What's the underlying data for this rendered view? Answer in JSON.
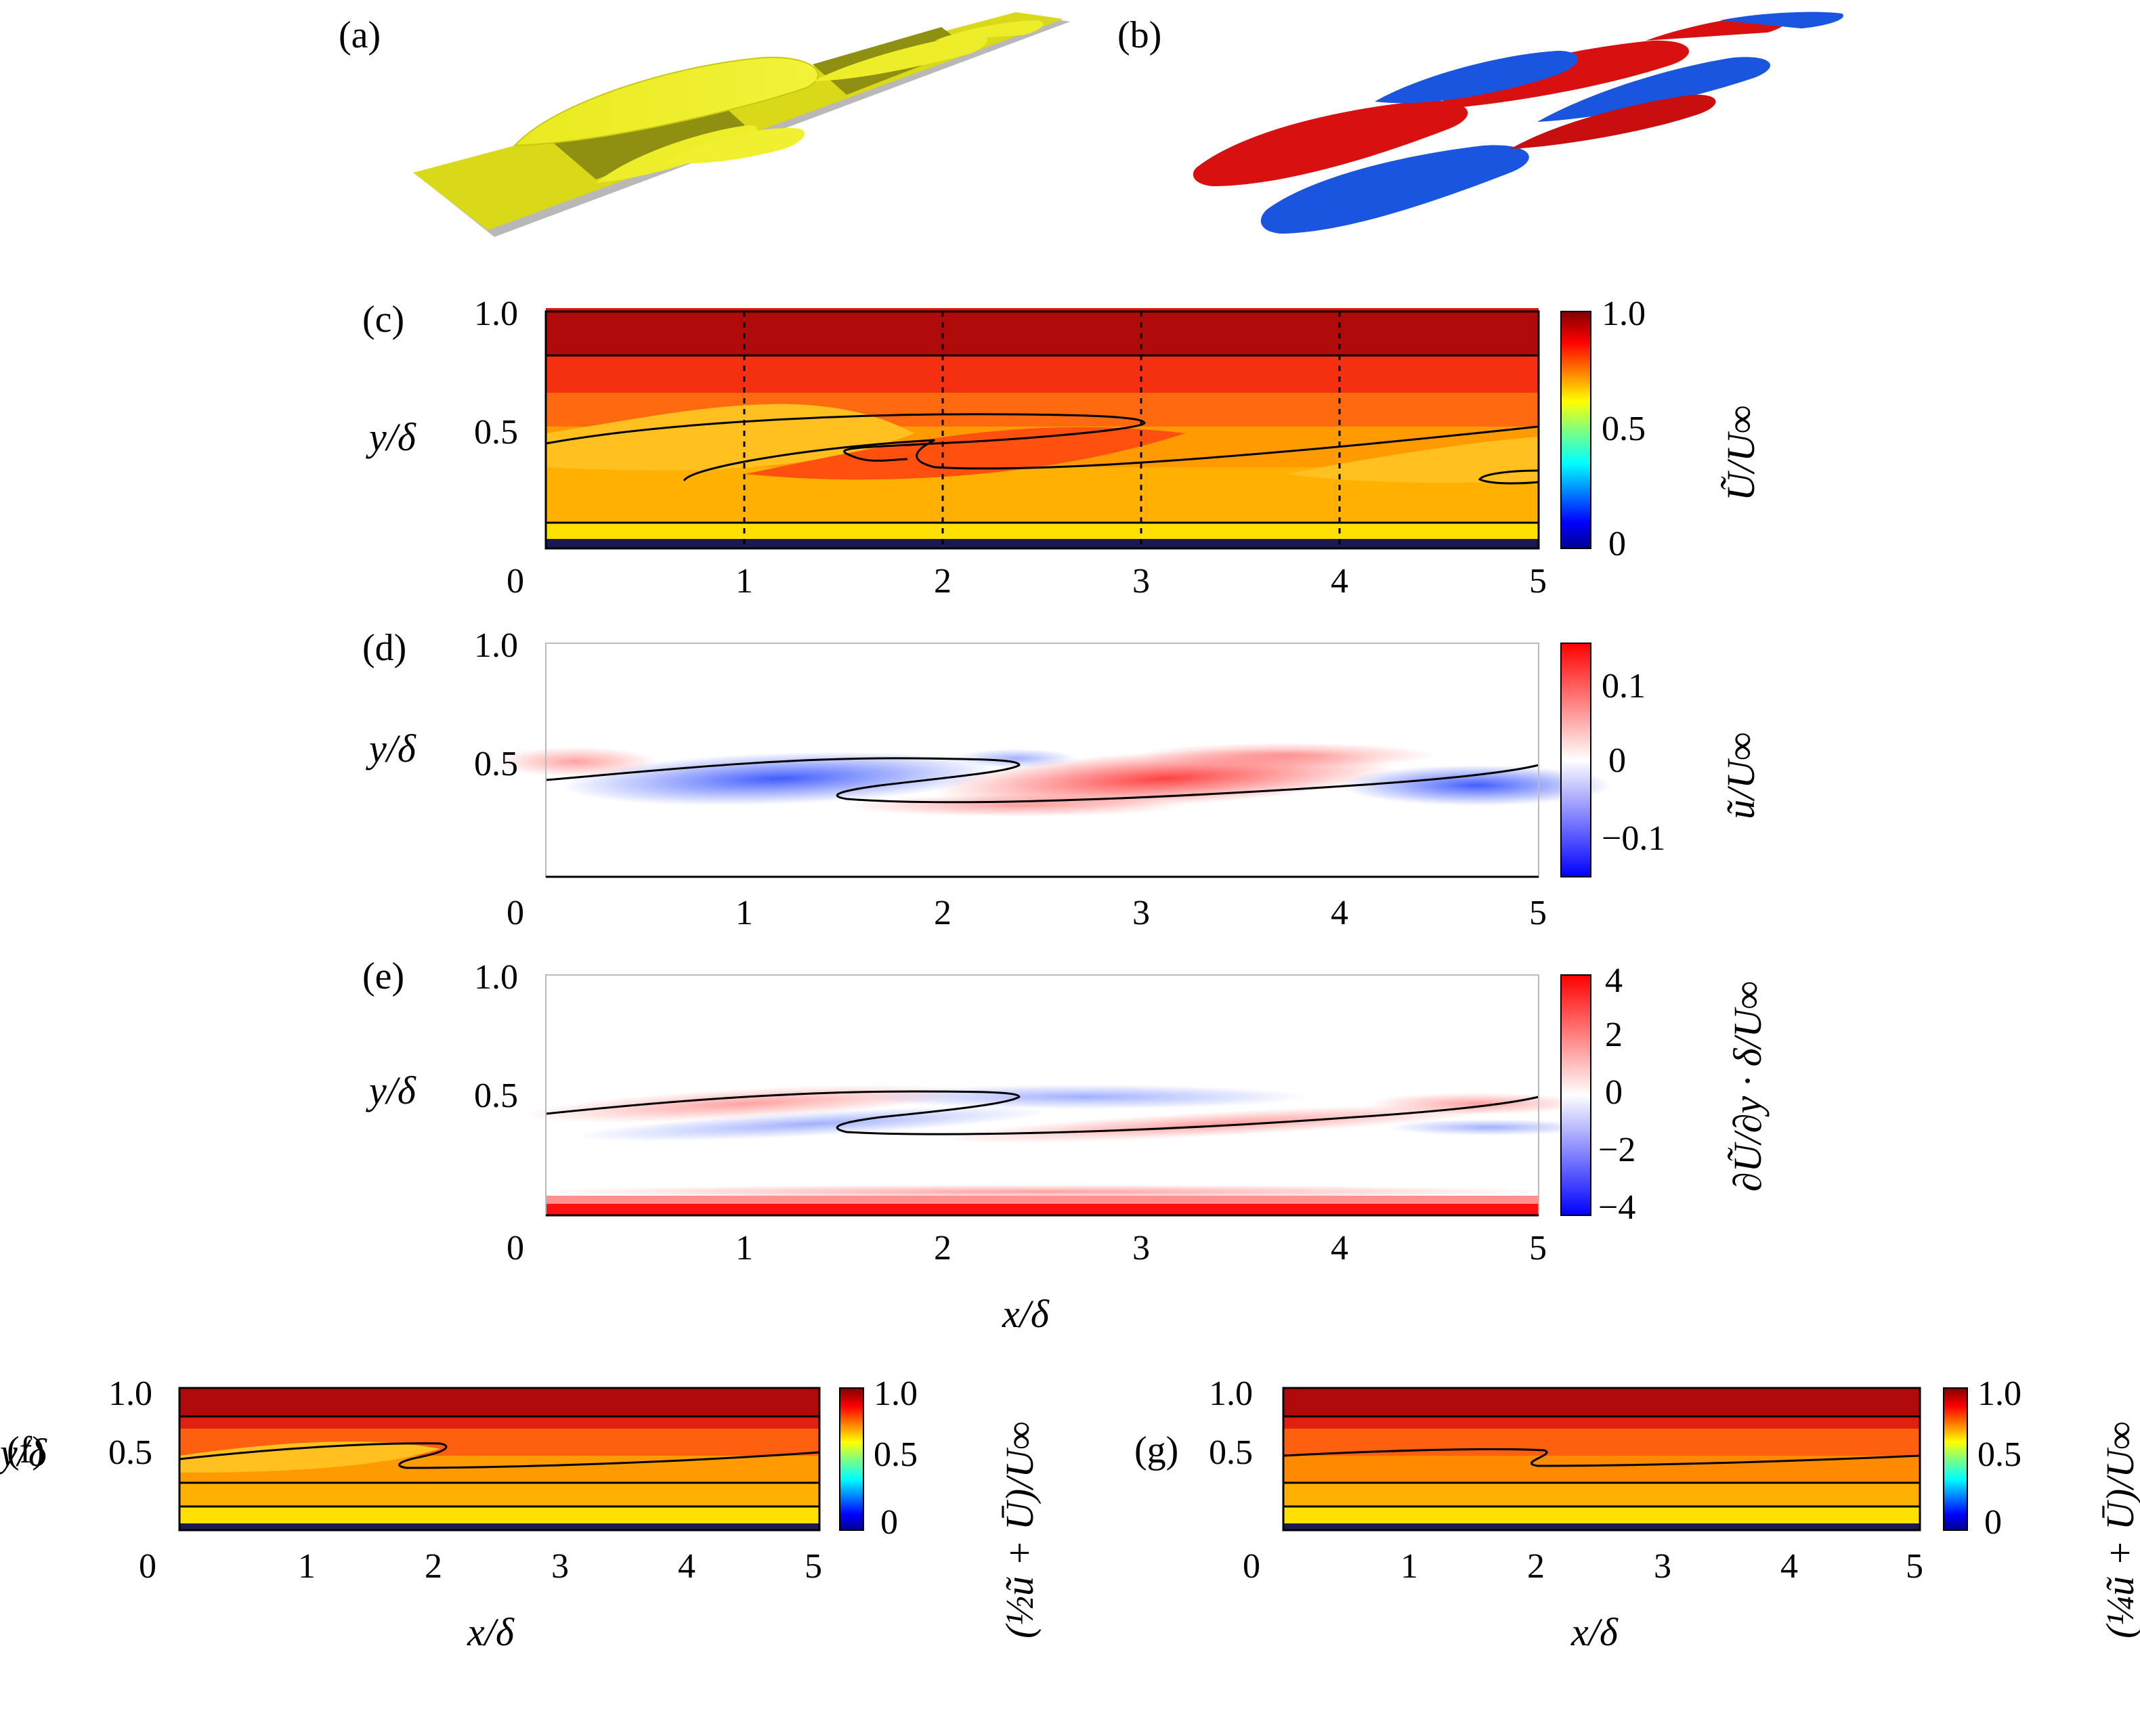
{
  "colors": {
    "yellow": "#e6e61e",
    "yellow_dark": "#8a8a10",
    "red": "#d01010",
    "blue": "#1a55e0",
    "contour": "#000000"
  },
  "chart_data": [
    {
      "id": "a",
      "type": "other",
      "label": "(a)",
      "description_kind": "3d-isosurface-yellow"
    },
    {
      "id": "b",
      "type": "other",
      "label": "(b)",
      "description_kind": "3d-isosurface-red-blue"
    },
    {
      "id": "c",
      "type": "heatmap",
      "label": "(c)",
      "ylabel": "y/δ",
      "xlabel": "",
      "xlim": [
        0,
        5
      ],
      "ylim": [
        0,
        1.0
      ],
      "xticks": [
        "0",
        "1",
        "2",
        "3",
        "4",
        "5"
      ],
      "yticks": [
        "1.0",
        "0.5"
      ],
      "colorbar": {
        "label": "Ũ/U∞",
        "ticks": [
          "1.0",
          "0.5",
          "0"
        ],
        "range": [
          0,
          1.0
        ],
        "colormap": "jet"
      },
      "dashed_x": [
        0,
        1,
        2,
        3,
        4
      ],
      "bands": [
        {
          "y0": 0.93,
          "y1": 1.0,
          "value": 1.0
        },
        {
          "y0": 0.81,
          "y1": 0.93,
          "value": 0.95
        },
        {
          "y0": 0.62,
          "y1": 0.81,
          "value": 0.9
        },
        {
          "y0": 0.48,
          "y1": 0.62,
          "value": 0.85
        },
        {
          "y0": 0.32,
          "y1": 0.48,
          "value": 0.72
        },
        {
          "y0": 0.12,
          "y1": 0.32,
          "value": 0.66
        },
        {
          "y0": 0.05,
          "y1": 0.12,
          "value": 0.55
        },
        {
          "y0": 0.0,
          "y1": 0.05,
          "value": 0.0
        }
      ]
    },
    {
      "id": "d",
      "type": "heatmap",
      "label": "(d)",
      "ylabel": "y/δ",
      "xlabel": "",
      "xlim": [
        0,
        5
      ],
      "ylim": [
        0,
        1.0
      ],
      "xticks": [
        "0",
        "1",
        "2",
        "3",
        "4",
        "5"
      ],
      "yticks": [
        "1.0",
        "0.5"
      ],
      "colorbar": {
        "label": "ũ/U∞",
        "ticks": [
          "0.1",
          "0",
          "−0.1"
        ],
        "range": [
          -0.15,
          0.15
        ],
        "colormap": "bwr"
      }
    },
    {
      "id": "e",
      "type": "heatmap",
      "label": "(e)",
      "ylabel": "y/δ",
      "xlabel": "x/δ",
      "xlim": [
        0,
        5
      ],
      "ylim": [
        0,
        1.0
      ],
      "xticks": [
        "0",
        "1",
        "2",
        "3",
        "4",
        "5"
      ],
      "yticks": [
        "1.0",
        "0.5"
      ],
      "colorbar": {
        "label": "∂Ũ/∂y · δ/U∞",
        "ticks": [
          "4",
          "2",
          "0",
          "−2",
          "−4"
        ],
        "range": [
          -4,
          4
        ],
        "colormap": "bwr"
      }
    },
    {
      "id": "f",
      "type": "heatmap",
      "label": "(f)",
      "ylabel": "y/δ",
      "xlabel": "x/δ",
      "xlim": [
        0,
        5
      ],
      "ylim": [
        0,
        1.0
      ],
      "xticks": [
        "0",
        "1",
        "2",
        "3",
        "4",
        "5"
      ],
      "yticks": [
        "1.0",
        "0.5"
      ],
      "colorbar": {
        "label": "(½ũ + Ū)/U∞",
        "ticks": [
          "1.0",
          "0.5",
          "0"
        ],
        "range": [
          0,
          1.0
        ],
        "colormap": "jet"
      }
    },
    {
      "id": "g",
      "type": "heatmap",
      "label": "(g)",
      "ylabel": "y/δ",
      "xlabel": "x/δ",
      "xlim": [
        0,
        5
      ],
      "ylim": [
        0,
        1.0
      ],
      "xticks": [
        "0",
        "1",
        "2",
        "3",
        "4",
        "5"
      ],
      "yticks": [
        "1.0",
        "0.5"
      ],
      "colorbar": {
        "label": "(¼ũ + Ū)/U∞",
        "ticks": [
          "1.0",
          "0.5",
          "0"
        ],
        "range": [
          0,
          1.0
        ],
        "colormap": "jet"
      }
    }
  ]
}
